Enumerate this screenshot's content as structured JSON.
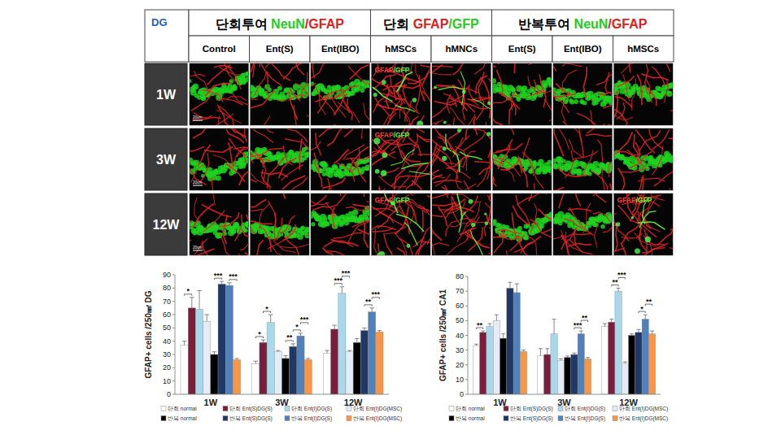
{
  "figure": {
    "region": "DG",
    "rows": [
      "1W",
      "3W",
      "12W"
    ],
    "groups": [
      {
        "header": [
          {
            "text": "단회투여 ",
            "color": "#000000"
          },
          {
            "text": "NeuN",
            "color": "#22cc22"
          },
          {
            "text": "/GFAP",
            "color": "#e02020"
          }
        ],
        "columns": [
          "Control",
          "Ent(S)",
          "Ent(IBO)"
        ],
        "panels": [
          [
            {
              "scale_bar": "20um"
            },
            null,
            null
          ],
          [
            {
              "scale_bar": "20um"
            },
            null,
            null
          ],
          [
            {
              "scale_bar": "20um"
            },
            null,
            null
          ]
        ]
      },
      {
        "header": [
          {
            "text": "단회 ",
            "color": "#000000"
          },
          {
            "text": "GFAP",
            "color": "#e02020"
          },
          {
            "text": "/GFP",
            "color": "#22cc22"
          }
        ],
        "columns": [
          "hMSCs",
          "hMNCs"
        ],
        "panels": [
          [
            {
              "label": [
                {
                  "text": "GFAP",
                  "color": "#ff3b3b"
                },
                {
                  "text": "/GFP",
                  "color": "#3bff3b"
                }
              ]
            },
            {
              "label": []
            }
          ],
          [
            {
              "label": [
                {
                  "text": "GFAP",
                  "color": "#ff3b3b"
                },
                {
                  "text": "/GFP",
                  "color": "#3bff3b"
                }
              ]
            },
            {
              "label": []
            }
          ],
          [
            {
              "label": [
                {
                  "text": "GFAP",
                  "color": "#ff3b3b"
                },
                {
                  "text": "/GFP",
                  "color": "#3bff3b"
                }
              ]
            },
            {
              "label": []
            }
          ]
        ]
      },
      {
        "header": [
          {
            "text": "반복투여 ",
            "color": "#000000"
          },
          {
            "text": "NeuN",
            "color": "#22cc22"
          },
          {
            "text": "/GFAP",
            "color": "#e02020"
          }
        ],
        "columns": [
          "Ent(S)",
          "Ent(IBO)",
          "hMSCs"
        ],
        "panels": [
          [
            null,
            null,
            null
          ],
          [
            null,
            null,
            null
          ],
          [
            null,
            null,
            {
              "label": [
                {
                  "text": "GFAP",
                  "color": "#ff3b3b"
                },
                {
                  "text": "/GFP",
                  "color": "#3bff3b"
                }
              ]
            }
          ]
        ]
      }
    ]
  },
  "chart_data": [
    {
      "type": "bar",
      "y_label": "GFAP+ cells /250㎟ DG",
      "categories": [
        "1W",
        "3W",
        "12W"
      ],
      "ylim": [
        0,
        90
      ],
      "yticks": [
        0,
        10,
        20,
        30,
        40,
        50,
        60,
        70,
        80,
        90
      ],
      "grid": false,
      "legend": "bottom",
      "series": [
        {
          "name": "단회 normal",
          "color": "#ffffff",
          "values": [
            37,
            23,
            31
          ],
          "errors": [
            3,
            2,
            2
          ]
        },
        {
          "name": "단회 Ent(S)DG(S)",
          "color": "#7b1e3c",
          "values": [
            65,
            39,
            49
          ],
          "errors": [
            8,
            2,
            3
          ]
        },
        {
          "name": "단회 Ent(I)DG(S)",
          "color": "#a8d8ea",
          "values": [
            64,
            54,
            76
          ],
          "errors": [
            14,
            6,
            5
          ]
        },
        {
          "name": "단회 Ent(I)DG(MSC)",
          "color": "#e4ecf7",
          "values": [
            55,
            32,
            32
          ],
          "errors": [
            5,
            1,
            1
          ]
        },
        {
          "name": "반복 normal",
          "color": "#000000",
          "values": [
            30,
            27,
            39
          ],
          "errors": [
            2,
            2,
            3
          ]
        },
        {
          "name": "반복 Ent(S)DG(S)",
          "color": "#1f3864",
          "values": [
            83,
            36,
            48
          ],
          "errors": [
            2,
            2,
            2
          ]
        },
        {
          "name": "반복 Ent(I)DG(S)",
          "color": "#4f81bd",
          "values": [
            82,
            44,
            62
          ],
          "errors": [
            2,
            2,
            3
          ]
        },
        {
          "name": "반복 Ent(I)DG(MSC)",
          "color": "#f79646",
          "values": [
            26,
            26,
            47
          ],
          "errors": [
            1,
            1,
            1
          ]
        }
      ],
      "annotations": [
        {
          "text": "*",
          "category": 0,
          "from": 0,
          "to": 1
        },
        {
          "text": "***",
          "category": 0,
          "from": 4,
          "to": 5
        },
        {
          "text": "***",
          "category": 0,
          "from": 6,
          "to": 7
        },
        {
          "text": "*",
          "category": 1,
          "from": 0,
          "to": 1
        },
        {
          "text": "*",
          "category": 1,
          "from": 1,
          "to": 2
        },
        {
          "text": "**",
          "category": 1,
          "from": 4,
          "to": 5
        },
        {
          "text": "*",
          "category": 1,
          "from": 5,
          "to": 6
        },
        {
          "text": "***",
          "category": 1,
          "from": 6,
          "to": 7
        },
        {
          "text": "***",
          "category": 2,
          "from": 1,
          "to": 2
        },
        {
          "text": "***",
          "category": 2,
          "from": 2,
          "to": 3
        },
        {
          "text": "**",
          "category": 2,
          "from": 5,
          "to": 6
        },
        {
          "text": "***",
          "category": 2,
          "from": 6,
          "to": 7
        }
      ]
    },
    {
      "type": "bar",
      "y_label": "GFAP+ cells /250㎟ CA1",
      "categories": [
        "1W",
        "3W",
        "12W"
      ],
      "ylim": [
        0,
        80
      ],
      "yticks": [
        0,
        10,
        20,
        30,
        40,
        50,
        60,
        70,
        80
      ],
      "grid": false,
      "legend": "bottom",
      "series": [
        {
          "name": "단회 normal",
          "color": "#ffffff",
          "values": [
            33,
            26,
            46
          ],
          "errors": [
            1,
            5,
            2
          ]
        },
        {
          "name": "단회 Ent(S)DG(S)",
          "color": "#7b1e3c",
          "values": [
            42,
            27,
            49
          ],
          "errors": [
            1,
            4,
            2
          ]
        },
        {
          "name": "단회 Ent(I)DG(S)",
          "color": "#a8d8ea",
          "values": [
            46,
            41,
            70
          ],
          "errors": [
            2,
            10,
            2
          ]
        },
        {
          "name": "단회 Ent(I)DG(MSC)",
          "color": "#e4ecf7",
          "values": [
            50,
            23,
            21
          ],
          "errors": [
            4,
            1,
            1
          ]
        },
        {
          "name": "반복 normal",
          "color": "#000000",
          "values": [
            38,
            25,
            40
          ],
          "errors": [
            3,
            1,
            1
          ]
        },
        {
          "name": "반복 Ent(S)DG(S)",
          "color": "#1f3864",
          "values": [
            72,
            27,
            42
          ],
          "errors": [
            4,
            1,
            2
          ]
        },
        {
          "name": "반복 Ent(I)DG(S)",
          "color": "#4f81bd",
          "values": [
            69,
            41,
            51
          ],
          "errors": [
            6,
            2,
            3
          ]
        },
        {
          "name": "반복 Ent(I)DG(MSC)",
          "color": "#f79646",
          "values": [
            29,
            24,
            41
          ],
          "errors": [
            1,
            1,
            2
          ]
        }
      ],
      "annotations": [
        {
          "text": "**",
          "category": 0,
          "from": 0,
          "to": 1
        },
        {
          "text": "***",
          "category": 1,
          "from": 5,
          "to": 6
        },
        {
          "text": "**",
          "category": 1,
          "from": 6,
          "to": 7
        },
        {
          "text": "**",
          "category": 2,
          "from": 1,
          "to": 2
        },
        {
          "text": "***",
          "category": 2,
          "from": 2,
          "to": 3
        },
        {
          "text": "*",
          "category": 2,
          "from": 5,
          "to": 6
        },
        {
          "text": "**",
          "category": 2,
          "from": 6,
          "to": 7
        }
      ]
    }
  ]
}
